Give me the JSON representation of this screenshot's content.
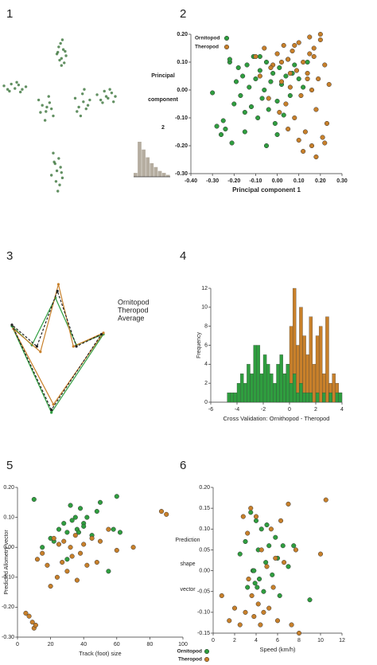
{
  "chart_data": [
    {
      "type": "scatter",
      "label": "1",
      "series": [
        {
          "color": "#2e6b2e",
          "x": [
            70,
            75,
            68,
            78,
            73,
            72,
            76,
            69,
            74,
            71,
            77,
            73,
            10,
            14,
            18,
            22,
            26,
            30,
            34,
            16,
            24,
            28,
            48,
            52,
            56,
            60,
            64,
            55,
            59,
            62,
            50,
            57,
            88,
            92,
            96,
            100,
            104,
            94,
            98,
            102,
            90,
            97,
            112,
            116,
            120,
            124,
            128,
            132,
            118,
            126,
            122,
            130,
            64,
            70,
            66,
            72,
            68,
            62,
            74,
            67,
            71,
            65,
            69,
            73
          ],
          "y": [
            178,
            175,
            170,
            168,
            165,
            182,
            160,
            172,
            186,
            163,
            173,
            157,
            134,
            130,
            136,
            131,
            135,
            130,
            133,
            128,
            138,
            127,
            118,
            112,
            105,
            115,
            100,
            95,
            122,
            108,
            104,
            110,
            120,
            110,
            125,
            108,
            118,
            100,
            130,
            112,
            105,
            116,
            124,
            118,
            128,
            120,
            126,
            122,
            115,
            130,
            122,
            116,
            58,
            52,
            46,
            42,
            38,
            33,
            30,
            26,
            22,
            48,
            15,
            36
          ]
        }
      ]
    },
    {
      "type": "scatter",
      "label": "2",
      "xlabel": "Principal component 1",
      "ylabel": [
        "Principal",
        "component",
        "2"
      ],
      "legend": "upper left",
      "xlim": [
        -0.4,
        0.3
      ],
      "ylim": [
        -0.3,
        0.2
      ],
      "xticks": [
        {
          "value": -0.4,
          "label": "-0.40"
        },
        {
          "value": -0.3,
          "label": "-0.30"
        },
        {
          "value": -0.2,
          "label": "-0.20"
        },
        {
          "value": -0.1,
          "label": "-0.10"
        },
        {
          "value": 0,
          "label": "0.00"
        },
        {
          "value": 0.1,
          "label": "0.10"
        },
        {
          "value": 0.2,
          "label": "0.20"
        },
        {
          "value": 0.3,
          "label": "0.30"
        }
      ],
      "yticks": [
        {
          "value": 0.2,
          "label": "0.20"
        },
        {
          "value": 0.1,
          "label": "0.10"
        },
        {
          "value": 0,
          "label": "0.00"
        },
        {
          "value": -0.1,
          "label": "-0.10"
        },
        {
          "value": -0.2,
          "label": "-0.20"
        },
        {
          "value": -0.3,
          "label": "-0.30"
        }
      ],
      "series": [
        {
          "name": "Ornitopod",
          "color": "#2f9e3f",
          "x": [
            -0.3,
            -0.28,
            -0.26,
            -0.25,
            -0.24,
            -0.22,
            -0.21,
            -0.2,
            -0.19,
            -0.18,
            -0.17,
            -0.16,
            -0.15,
            -0.14,
            -0.13,
            -0.12,
            -0.11,
            -0.1,
            -0.09,
            -0.08,
            -0.07,
            -0.06,
            -0.05,
            -0.04,
            -0.03,
            -0.02,
            -0.01,
            0.0,
            0.01,
            0.02,
            0.03,
            0.04,
            0.05,
            0.06,
            0.08,
            0.1,
            0.12,
            0.14,
            -0.22,
            -0.15,
            -0.08,
            -0.05,
            0.0,
            0.07
          ],
          "y": [
            -0.01,
            -0.13,
            -0.16,
            -0.11,
            -0.14,
            0.1,
            -0.19,
            -0.05,
            0.03,
            0.08,
            -0.02,
            0.05,
            -0.08,
            0.09,
            0.01,
            -0.06,
            0.12,
            0.04,
            -0.1,
            0.07,
            -0.03,
            0.0,
            0.1,
            -0.07,
            0.03,
            0.06,
            -0.12,
            -0.04,
            0.08,
            0.02,
            -0.09,
            0.05,
            0.11,
            -0.02,
            0.09,
            0.04,
            0.01,
            0.1,
            0.11,
            -0.15,
            0.12,
            -0.2,
            -0.16,
            0.06
          ]
        },
        {
          "name": "Theropod",
          "color": "#c8802a",
          "x": [
            -0.1,
            -0.08,
            -0.06,
            -0.04,
            -0.02,
            0.0,
            0.01,
            0.02,
            0.03,
            0.04,
            0.05,
            0.06,
            0.07,
            0.08,
            0.09,
            0.1,
            0.11,
            0.12,
            0.13,
            0.14,
            0.15,
            0.16,
            0.17,
            0.18,
            0.19,
            0.2,
            0.21,
            0.22,
            0.23,
            0.24,
            0.05,
            0.08,
            0.12,
            0.15,
            0.18,
            0.2,
            0.02,
            -0.03,
            0.1,
            0.14,
            0.17,
            0.22,
            0.06,
            0.16
          ],
          "y": [
            0.12,
            0.05,
            0.15,
            -0.03,
            0.09,
            0.13,
            -0.08,
            0.03,
            0.16,
            -0.05,
            0.11,
            0.01,
            0.14,
            -0.1,
            0.07,
            0.17,
            -0.02,
            0.1,
            -0.15,
            0.06,
            0.19,
            -0.2,
            0.12,
            -0.07,
            0.04,
            0.18,
            -0.17,
            0.09,
            -0.12,
            0.02,
            -0.14,
            0.16,
            -0.22,
            0.13,
            -0.24,
            0.2,
            0.1,
            0.08,
            -0.18,
            0.04,
            0.15,
            -0.19,
            0.06,
            0.0
          ]
        }
      ],
      "inset": {
        "type": "bar",
        "values": [
          1,
          9,
          7,
          5,
          3.5,
          2.5,
          1.5,
          1,
          0.5
        ],
        "color": "#b5ada0"
      }
    },
    {
      "type": "line",
      "label": "3",
      "legend": "right",
      "series": [
        {
          "name": "Ornitopod",
          "color": "#2f9e3f",
          "x": [
            42,
            2.5,
            22.5,
            46,
            67,
            94
          ],
          "y": [
            3,
            67,
            53,
            88,
            53,
            61
          ]
        },
        {
          "name": "Theropod",
          "color": "#c8802a",
          "x": [
            44,
            4,
            31,
            49,
            64,
            94
          ],
          "y": [
            9,
            65,
            48,
            98,
            52,
            62
          ]
        },
        {
          "name": "Average",
          "color": "#222222",
          "linestyle": "dashed",
          "x": [
            42,
            2.5,
            27.5,
            48,
            67,
            92
          ],
          "y": [
            5,
            68,
            52,
            93,
            52,
            61
          ]
        }
      ]
    },
    {
      "type": "histogram",
      "label": "4",
      "xlabel": "Cross Validation: Ornithopod - Theropod",
      "ylabel": "Frequency",
      "xlim": [
        -6,
        4
      ],
      "ylim": [
        0,
        12
      ],
      "xticks": [
        -6,
        -4,
        -2,
        0,
        2,
        4
      ],
      "yticks": [
        0,
        2,
        4,
        6,
        8,
        10,
        12
      ],
      "bins": [
        -5,
        -4.75,
        -4.5,
        -4.25,
        -4,
        -3.75,
        -3.5,
        -3.25,
        -3,
        -2.75,
        -2.5,
        -2.25,
        -2,
        -1.75,
        -1.5,
        -1.25,
        -1,
        -0.75,
        -0.5,
        -0.25,
        0,
        0.25,
        0.5,
        0.75,
        1,
        1.25,
        1.5,
        1.75,
        2,
        2.25,
        2.5,
        2.75,
        3,
        3.25,
        3.5,
        3.75,
        4
      ],
      "series": [
        {
          "color": "#2f9e3f",
          "values": [
            0,
            1,
            1,
            1,
            2,
            3,
            2,
            4,
            3,
            6,
            6,
            3,
            5,
            4,
            3,
            2,
            4,
            5,
            3,
            4,
            2,
            3,
            1,
            2,
            1,
            1,
            1,
            0,
            1,
            0,
            1,
            0,
            1,
            0,
            1,
            1
          ]
        },
        {
          "color": "#c8802a",
          "values": [
            0,
            0,
            0,
            0,
            0,
            0,
            0,
            0,
            0,
            0,
            0,
            0,
            0,
            0,
            0,
            0,
            1,
            2,
            3,
            4,
            8,
            12,
            6,
            10,
            7,
            5,
            9,
            4,
            7,
            8,
            3,
            9,
            2,
            3,
            2,
            1
          ]
        }
      ]
    },
    {
      "type": "scatter",
      "label": "5",
      "xlabel": "Track (foot) size",
      "ylabel": "Predicted Allometry vector",
      "xlim": [
        0,
        100
      ],
      "ylim": [
        -0.3,
        0.2
      ],
      "xticks": [
        0,
        20,
        40,
        60,
        80,
        100
      ],
      "yticks": [
        {
          "value": 0.2,
          "label": "0.20"
        },
        {
          "value": 0.1,
          "label": "0.10"
        },
        {
          "value": 0,
          "label": "0.00"
        },
        {
          "value": -0.1,
          "label": "-0.10"
        },
        {
          "value": -0.2,
          "label": "-0.20"
        },
        {
          "value": -0.3,
          "label": "-0.30"
        }
      ],
      "series": [
        {
          "color": "#2f9e3f",
          "x": [
            10,
            15,
            20,
            22,
            25,
            28,
            30,
            32,
            33,
            35,
            36,
            37,
            38,
            40,
            40,
            42,
            45,
            48,
            50,
            55,
            58,
            60,
            62,
            30
          ],
          "y": [
            0.16,
            0.0,
            0.03,
            0.02,
            0.06,
            0.08,
            0.05,
            0.14,
            0.09,
            0.1,
            0.06,
            0.05,
            0.13,
            0.08,
            0.07,
            0.1,
            0.04,
            0.12,
            0.15,
            -0.08,
            0.06,
            0.17,
            0.05,
            -0.04
          ]
        },
        {
          "color": "#c8802a",
          "x": [
            5,
            7,
            9,
            10,
            11,
            12,
            15,
            18,
            20,
            22,
            24,
            25,
            27,
            28,
            30,
            32,
            33,
            35,
            36,
            38,
            40,
            42,
            45,
            48,
            50,
            55,
            60,
            70,
            87,
            90
          ],
          "y": [
            -0.22,
            -0.23,
            -0.25,
            -0.27,
            -0.26,
            -0.04,
            -0.02,
            -0.06,
            -0.13,
            0.03,
            -0.1,
            0.01,
            -0.05,
            0.02,
            -0.08,
            0.0,
            -0.03,
            0.04,
            -0.11,
            -0.02,
            0.01,
            -0.06,
            0.03,
            -0.05,
            0.02,
            0.06,
            -0.01,
            0.0,
            0.12,
            0.11
          ]
        }
      ]
    },
    {
      "type": "scatter",
      "label": "6",
      "xlabel": "Speed (km/h)",
      "ylabel": [
        "Prediction",
        "shape",
        "vector"
      ],
      "legend": "bottom",
      "xlim": [
        0,
        12
      ],
      "ylim": [
        -0.15,
        0.2
      ],
      "xticks": [
        0,
        2,
        4,
        6,
        8,
        10,
        12
      ],
      "yticks": [
        {
          "value": 0.2,
          "label": "0.20"
        },
        0.15,
        {
          "value": 0.1,
          "label": "0.10"
        },
        0.05,
        {
          "value": 0,
          "label": "0.00"
        },
        -0.05,
        {
          "value": -0.1,
          "label": "-0.10"
        },
        -0.15
      ],
      "series": [
        {
          "name": "Ornitopod",
          "color": "#2f9e3f",
          "x": [
            2.5,
            3.0,
            3.2,
            3.5,
            3.7,
            3.9,
            4.0,
            4.2,
            4.3,
            4.5,
            4.7,
            4.9,
            5.0,
            5.2,
            5.5,
            5.8,
            6.0,
            6.2,
            6.5,
            7.0,
            7.5,
            9.0,
            4.1,
            3.8
          ],
          "y": [
            0.04,
            0.07,
            -0.04,
            0.14,
            0.0,
            -0.03,
            0.12,
            0.05,
            -0.02,
            0.1,
            -0.05,
            0.02,
            0.11,
            0.06,
            -0.01,
            0.08,
            0.03,
            -0.06,
            0.06,
            0.01,
            0.06,
            -0.07,
            -0.04,
            0.0
          ]
        },
        {
          "name": "Theropod",
          "color": "#c8802a",
          "x": [
            0.8,
            1.5,
            2.0,
            2.5,
            2.8,
            3.0,
            3.2,
            3.5,
            3.6,
            3.8,
            4.0,
            4.2,
            4.4,
            4.5,
            4.7,
            5.0,
            5.2,
            5.4,
            5.6,
            5.8,
            6.0,
            6.3,
            6.6,
            7.0,
            7.3,
            7.7,
            8.0,
            10.0,
            10.5,
            3.3
          ],
          "y": [
            -0.06,
            -0.12,
            -0.09,
            -0.13,
            0.13,
            -0.1,
            0.09,
            0.15,
            -0.06,
            -0.11,
            0.13,
            -0.08,
            -0.13,
            0.05,
            -0.1,
            0.01,
            -0.09,
            0.1,
            -0.04,
            0.03,
            -0.12,
            0.12,
            0.02,
            0.16,
            -0.13,
            0.05,
            -0.15,
            0.04,
            0.17,
            -0.02
          ]
        }
      ]
    }
  ]
}
